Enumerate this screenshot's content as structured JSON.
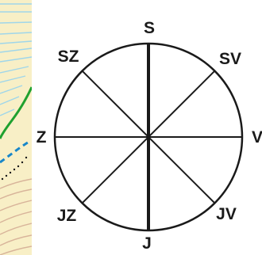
{
  "compass": {
    "labels": {
      "north": "S",
      "northeast": "SV",
      "east": "V",
      "southeast": "JV",
      "south": "J",
      "southwest": "JZ",
      "west": "Z",
      "northwest": "SZ"
    }
  },
  "colors": {
    "map_background": "#f8efc6",
    "contour_blue": "#9fd6ea",
    "river_green": "#1fa12f",
    "path_blue": "#1786c9",
    "contour_brown": "#d8b49a",
    "ink": "#1a1a1a"
  }
}
